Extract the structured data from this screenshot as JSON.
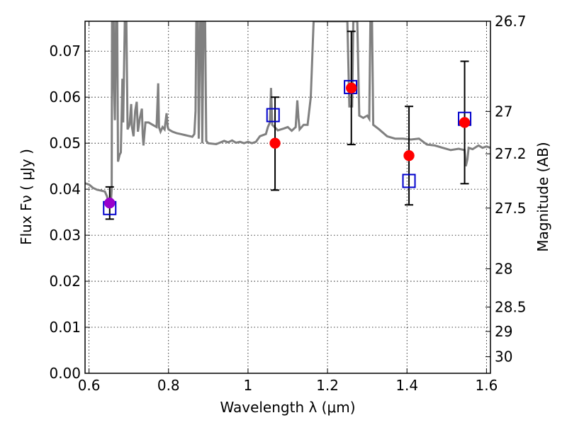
{
  "chart_data": {
    "type": "scatter",
    "xlabel": "Wavelength  λ (μm)",
    "ylabel": "Flux  Fν  ( μJy )",
    "ylabel_right": "Magnitude (AB)",
    "xlim": [
      0.59,
      1.61
    ],
    "ylim": [
      0.0,
      0.0765
    ],
    "x_ticks": [
      0.6,
      0.8,
      1.0,
      1.2,
      1.4,
      1.6
    ],
    "x_tick_labels": [
      "0.6",
      "0.8",
      "1",
      "1.2",
      "1.4",
      "1.6"
    ],
    "y_ticks": [
      0.0,
      0.01,
      0.02,
      0.03,
      0.04,
      0.05,
      0.06,
      0.07
    ],
    "y_tick_labels": [
      "0.00",
      "0.01",
      "0.02",
      "0.03",
      "0.04",
      "0.05",
      "0.06",
      "0.07"
    ],
    "right_ticks": [
      {
        "label": "26.7",
        "flux": 0.0765
      },
      {
        "label": "27",
        "flux": 0.0569
      },
      {
        "label": "27.2",
        "flux": 0.0477
      },
      {
        "label": "27.5",
        "flux": 0.0359
      },
      {
        "label": "28",
        "flux": 0.0227
      },
      {
        "label": "28.5",
        "flux": 0.0144
      },
      {
        "label": "29",
        "flux": 0.0091
      },
      {
        "label": "30",
        "flux": 0.0036
      }
    ],
    "grid": true,
    "series": [
      {
        "kind": "model_spectrum",
        "color": "#808080",
        "points": [
          [
            0.59,
            0.0413
          ],
          [
            0.6,
            0.041
          ],
          [
            0.61,
            0.0403
          ],
          [
            0.62,
            0.0399
          ],
          [
            0.63,
            0.0397
          ],
          [
            0.64,
            0.0395
          ],
          [
            0.645,
            0.0385
          ],
          [
            0.65,
            0.037
          ],
          [
            0.655,
            0.0373
          ],
          [
            0.657,
            0.04
          ],
          [
            0.658,
            0.0765
          ],
          [
            0.662,
            0.0765
          ],
          [
            0.663,
            0.062
          ],
          [
            0.665,
            0.055
          ],
          [
            0.668,
            0.0765
          ],
          [
            0.671,
            0.0765
          ],
          [
            0.673,
            0.046
          ],
          [
            0.677,
            0.0475
          ],
          [
            0.68,
            0.048
          ],
          [
            0.684,
            0.064
          ],
          [
            0.686,
            0.0545
          ],
          [
            0.69,
            0.0765
          ],
          [
            0.694,
            0.0765
          ],
          [
            0.697,
            0.053
          ],
          [
            0.702,
            0.054
          ],
          [
            0.706,
            0.0585
          ],
          [
            0.708,
            0.0535
          ],
          [
            0.712,
            0.0515
          ],
          [
            0.716,
            0.057
          ],
          [
            0.72,
            0.059
          ],
          [
            0.723,
            0.0525
          ],
          [
            0.728,
            0.0555
          ],
          [
            0.733,
            0.0575
          ],
          [
            0.735,
            0.052
          ],
          [
            0.737,
            0.0495
          ],
          [
            0.742,
            0.0545
          ],
          [
            0.75,
            0.0545
          ],
          [
            0.76,
            0.054
          ],
          [
            0.77,
            0.0535
          ],
          [
            0.774,
            0.063
          ],
          [
            0.776,
            0.0535
          ],
          [
            0.78,
            0.0525
          ],
          [
            0.785,
            0.0535
          ],
          [
            0.79,
            0.053
          ],
          [
            0.795,
            0.0565
          ],
          [
            0.798,
            0.0535
          ],
          [
            0.8,
            0.053
          ],
          [
            0.81,
            0.0525
          ],
          [
            0.82,
            0.0522
          ],
          [
            0.83,
            0.052
          ],
          [
            0.84,
            0.0518
          ],
          [
            0.85,
            0.0516
          ],
          [
            0.86,
            0.0514
          ],
          [
            0.865,
            0.052
          ],
          [
            0.868,
            0.057
          ],
          [
            0.87,
            0.0765
          ],
          [
            0.874,
            0.0765
          ],
          [
            0.876,
            0.051
          ],
          [
            0.88,
            0.0765
          ],
          [
            0.883,
            0.0765
          ],
          [
            0.885,
            0.05
          ],
          [
            0.888,
            0.0765
          ],
          [
            0.892,
            0.0765
          ],
          [
            0.895,
            0.0505
          ],
          [
            0.9,
            0.05
          ],
          [
            0.92,
            0.0498
          ],
          [
            0.94,
            0.0505
          ],
          [
            0.95,
            0.0502
          ],
          [
            0.96,
            0.0506
          ],
          [
            0.97,
            0.0501
          ],
          [
            0.98,
            0.0503
          ],
          [
            0.99,
            0.05
          ],
          [
            1.0,
            0.0503
          ],
          [
            1.01,
            0.05
          ],
          [
            1.02,
            0.0503
          ],
          [
            1.03,
            0.0515
          ],
          [
            1.045,
            0.052
          ],
          [
            1.05,
            0.0535
          ],
          [
            1.055,
            0.0545
          ],
          [
            1.058,
            0.062
          ],
          [
            1.061,
            0.054
          ],
          [
            1.075,
            0.0528
          ],
          [
            1.09,
            0.0532
          ],
          [
            1.1,
            0.0535
          ],
          [
            1.11,
            0.0527
          ],
          [
            1.12,
            0.0535
          ],
          [
            1.124,
            0.0593
          ],
          [
            1.127,
            0.0555
          ],
          [
            1.13,
            0.053
          ],
          [
            1.14,
            0.054
          ],
          [
            1.15,
            0.054
          ],
          [
            1.158,
            0.06
          ],
          [
            1.165,
            0.0765
          ],
          [
            1.24,
            0.0765
          ],
          [
            1.25,
            0.0765
          ],
          [
            1.255,
            0.058
          ],
          [
            1.262,
            0.058
          ],
          [
            1.265,
            0.0765
          ],
          [
            1.275,
            0.0765
          ],
          [
            1.28,
            0.056
          ],
          [
            1.29,
            0.0555
          ],
          [
            1.3,
            0.056
          ],
          [
            1.305,
            0.0553
          ],
          [
            1.308,
            0.0765
          ],
          [
            1.312,
            0.0765
          ],
          [
            1.315,
            0.054
          ],
          [
            1.33,
            0.053
          ],
          [
            1.35,
            0.0515
          ],
          [
            1.37,
            0.051
          ],
          [
            1.39,
            0.051
          ],
          [
            1.41,
            0.0508
          ],
          [
            1.43,
            0.051
          ],
          [
            1.45,
            0.0497
          ],
          [
            1.47,
            0.0495
          ],
          [
            1.49,
            0.049
          ],
          [
            1.51,
            0.0485
          ],
          [
            1.53,
            0.0488
          ],
          [
            1.545,
            0.0485
          ],
          [
            1.548,
            0.045
          ],
          [
            1.552,
            0.0465
          ],
          [
            1.555,
            0.049
          ],
          [
            1.565,
            0.0487
          ],
          [
            1.58,
            0.0495
          ],
          [
            1.59,
            0.049
          ],
          [
            1.6,
            0.0493
          ],
          [
            1.61,
            0.049
          ]
        ]
      },
      {
        "kind": "observed",
        "marker": "circle",
        "color": "#ff0000",
        "points": [
          {
            "x": 0.652,
            "y": 0.037,
            "yerr_low": 0.0035,
            "yerr_high": 0.0035,
            "color": "#9900cc"
          },
          {
            "x": 1.068,
            "y": 0.05,
            "yerr_low": 0.0102,
            "yerr_high": 0.01
          },
          {
            "x": 1.26,
            "y": 0.062,
            "yerr_low": 0.0123,
            "yerr_high": 0.0123
          },
          {
            "x": 1.405,
            "y": 0.0473,
            "yerr_low": 0.0107,
            "yerr_high": 0.0107
          },
          {
            "x": 1.545,
            "y": 0.0545,
            "yerr_low": 0.0133,
            "yerr_high": 0.0133
          }
        ]
      },
      {
        "kind": "model_bandpass",
        "marker": "open-square",
        "color": "#0000cc",
        "points": [
          {
            "x": 0.652,
            "y": 0.0359
          },
          {
            "x": 1.063,
            "y": 0.0561
          },
          {
            "x": 1.258,
            "y": 0.0622
          },
          {
            "x": 1.405,
            "y": 0.0418
          },
          {
            "x": 1.545,
            "y": 0.0553
          }
        ]
      }
    ]
  }
}
